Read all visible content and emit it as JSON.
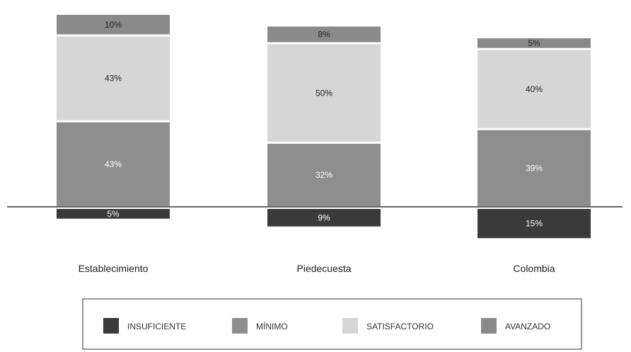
{
  "chart_data": {
    "type": "bar",
    "subtype": "stacked-diverging",
    "categories": [
      "Establecimiento",
      "Piedecuesta",
      "Colombia"
    ],
    "series": [
      {
        "name": "INSUFICIENTE",
        "values": [
          5,
          9,
          15
        ],
        "color": "#3a3a3a",
        "label_color": "#ffffff",
        "labels": [
          "5%",
          "9%",
          "15%"
        ]
      },
      {
        "name": "MÍNIMO",
        "values": [
          43,
          32,
          39
        ],
        "color": "#8e8e8e",
        "label_color": "#ffffff",
        "labels": [
          "43%",
          "32%",
          "39%"
        ]
      },
      {
        "name": "SATISFACTORIO",
        "values": [
          43,
          50,
          40
        ],
        "color": "#d6d6d6",
        "label_color": "#222222",
        "labels": [
          "43%",
          "50%",
          "40%"
        ]
      },
      {
        "name": "AVANZADO",
        "values": [
          10,
          8,
          5
        ],
        "color": "#8a8a8a",
        "label_color": "#222222",
        "labels": [
          "10%",
          "8%",
          "5%"
        ]
      }
    ],
    "baseline_after_series": "INSUFICIENTE",
    "below_baseline_series": [
      "INSUFICIENTE"
    ],
    "title": "",
    "xlabel": "",
    "ylabel": "",
    "legend_position": "bottom",
    "grid": false
  }
}
